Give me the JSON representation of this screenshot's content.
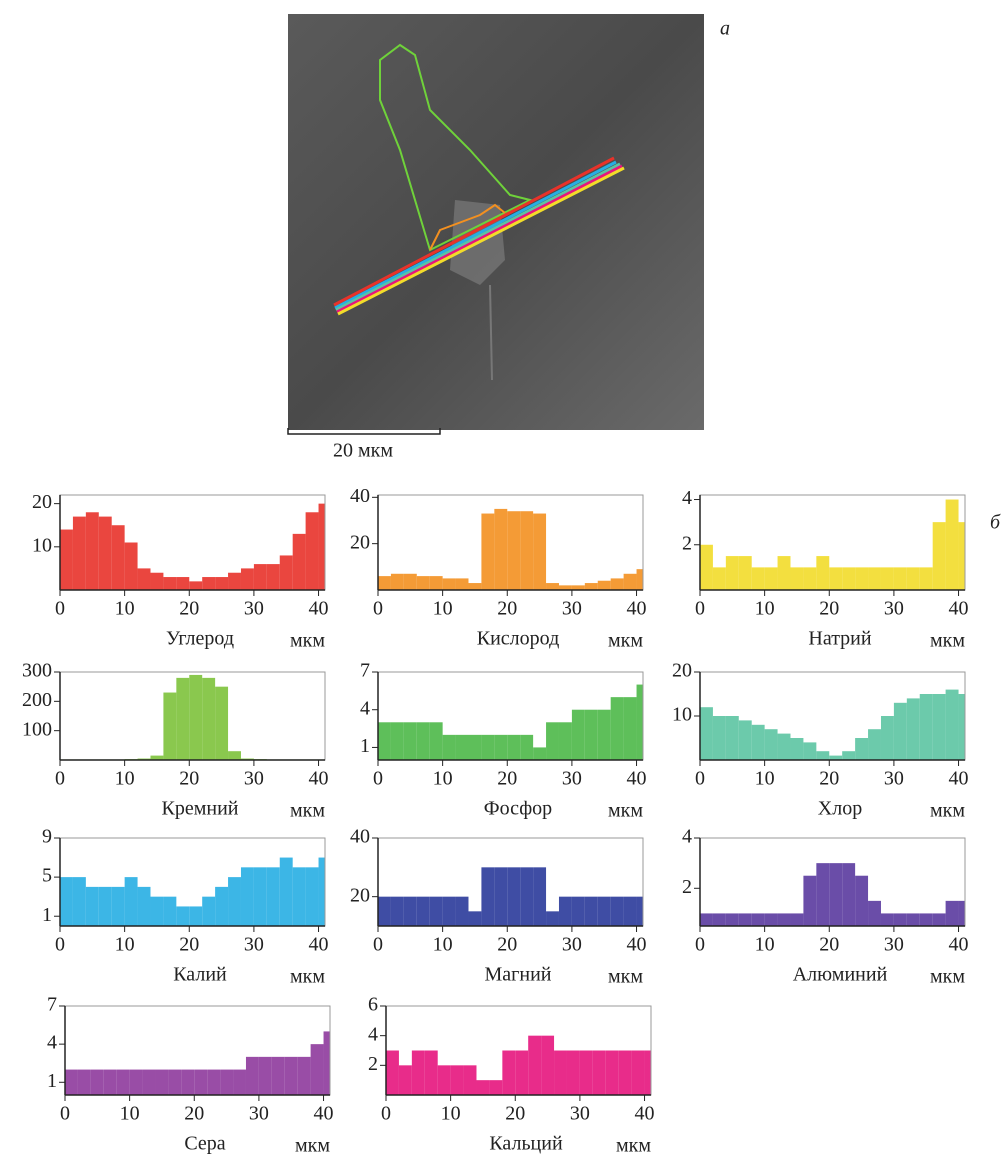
{
  "figure": {
    "panel_a": "а",
    "scale_bar": "20 мкм",
    "panel_b": "б"
  },
  "chart_data": [
    {
      "type": "bar",
      "title": "Углерод",
      "x_label": "мкм",
      "color": "#e8322a",
      "xlim": [
        0,
        41
      ],
      "xticks": [
        0,
        10,
        20,
        30,
        40
      ],
      "ylim": [
        0,
        22
      ],
      "yticks": [
        10,
        20
      ],
      "x": [
        0,
        2,
        4,
        6,
        8,
        10,
        12,
        14,
        16,
        18,
        20,
        22,
        24,
        26,
        28,
        30,
        32,
        34,
        36,
        38,
        40
      ],
      "values": [
        14,
        17,
        18,
        17,
        15,
        11,
        5,
        4,
        3,
        3,
        2,
        3,
        3,
        4,
        5,
        6,
        6,
        8,
        13,
        18,
        20
      ]
    },
    {
      "type": "bar",
      "title": "Кислород",
      "x_label": "мкм",
      "color": "#f39020",
      "xlim": [
        0,
        41
      ],
      "xticks": [
        0,
        10,
        20,
        30,
        40
      ],
      "ylim": [
        0,
        41
      ],
      "yticks": [
        20,
        40
      ],
      "x": [
        0,
        2,
        4,
        6,
        8,
        10,
        12,
        14,
        16,
        18,
        20,
        22,
        24,
        26,
        28,
        30,
        32,
        34,
        36,
        38,
        40
      ],
      "values": [
        6,
        7,
        7,
        6,
        6,
        5,
        5,
        3,
        33,
        35,
        34,
        34,
        33,
        3,
        2,
        2,
        3,
        4,
        5,
        7,
        9
      ]
    },
    {
      "type": "bar",
      "title": "Натрий",
      "x_label": "мкм",
      "color": "#f2dc2a",
      "xlim": [
        0,
        41
      ],
      "xticks": [
        0,
        10,
        20,
        30,
        40
      ],
      "ylim": [
        0,
        4.2
      ],
      "yticks": [
        2,
        4
      ],
      "x": [
        0,
        2,
        4,
        6,
        8,
        10,
        12,
        14,
        16,
        18,
        20,
        22,
        24,
        26,
        28,
        30,
        32,
        34,
        36,
        38,
        40
      ],
      "values": [
        2,
        1,
        1.5,
        1.5,
        1,
        1,
        1.5,
        1,
        1,
        1.5,
        1,
        1,
        1,
        1,
        1,
        1,
        1,
        1,
        3,
        4,
        3
      ]
    },
    {
      "type": "bar",
      "title": "Кремний",
      "x_label": "мкм",
      "color": "#7dc23b",
      "xlim": [
        0,
        41
      ],
      "xticks": [
        0,
        10,
        20,
        30,
        40
      ],
      "ylim": [
        0,
        300
      ],
      "yticks": [
        100,
        200,
        300
      ],
      "x": [
        0,
        2,
        4,
        6,
        8,
        10,
        12,
        14,
        16,
        18,
        20,
        22,
        24,
        26,
        28,
        30,
        32,
        34,
        36,
        38,
        40
      ],
      "values": [
        2,
        2,
        2,
        2,
        2,
        3,
        5,
        15,
        230,
        280,
        290,
        280,
        250,
        30,
        5,
        3,
        2,
        2,
        2,
        2,
        2
      ]
    },
    {
      "type": "bar",
      "title": "Фосфор",
      "x_label": "мкм",
      "color": "#4cb848",
      "xlim": [
        0,
        41
      ],
      "xticks": [
        0,
        10,
        20,
        30,
        40
      ],
      "ylim": [
        0,
        7
      ],
      "yticks": [
        1,
        4,
        7
      ],
      "x": [
        0,
        2,
        4,
        6,
        8,
        10,
        12,
        14,
        16,
        18,
        20,
        22,
        24,
        26,
        28,
        30,
        32,
        34,
        36,
        38,
        40
      ],
      "values": [
        3,
        3,
        3,
        3,
        3,
        2,
        2,
        2,
        2,
        2,
        2,
        2,
        1,
        3,
        3,
        4,
        4,
        4,
        5,
        5,
        6
      ]
    },
    {
      "type": "bar",
      "title": "Хлор",
      "x_label": "мкм",
      "color": "#5cc4a2",
      "xlim": [
        0,
        41
      ],
      "xticks": [
        0,
        10,
        20,
        30,
        40
      ],
      "ylim": [
        0,
        20
      ],
      "yticks": [
        10,
        20
      ],
      "x": [
        0,
        2,
        4,
        6,
        8,
        10,
        12,
        14,
        16,
        18,
        20,
        22,
        24,
        26,
        28,
        30,
        32,
        34,
        36,
        38,
        40
      ],
      "values": [
        12,
        10,
        10,
        9,
        8,
        7,
        6,
        5,
        4,
        2,
        1,
        2,
        5,
        7,
        10,
        13,
        14,
        15,
        15,
        16,
        15
      ]
    },
    {
      "type": "bar",
      "title": "Калий",
      "x_label": "мкм",
      "color": "#27aee3",
      "xlim": [
        0,
        41
      ],
      "xticks": [
        0,
        10,
        20,
        30,
        40
      ],
      "ylim": [
        0,
        9
      ],
      "yticks": [
        1,
        5,
        9
      ],
      "x": [
        0,
        2,
        4,
        6,
        8,
        10,
        12,
        14,
        16,
        18,
        20,
        22,
        24,
        26,
        28,
        30,
        32,
        34,
        36,
        38,
        40
      ],
      "values": [
        5,
        5,
        4,
        4,
        4,
        5,
        4,
        3,
        3,
        2,
        2,
        3,
        4,
        5,
        6,
        6,
        6,
        7,
        6,
        6,
        7
      ]
    },
    {
      "type": "bar",
      "title": "Магний",
      "x_label": "мкм",
      "color": "#2a3a9a",
      "xlim": [
        0,
        41
      ],
      "xticks": [
        0,
        10,
        20,
        30,
        40
      ],
      "ylim": [
        10,
        40
      ],
      "yticks": [
        20,
        40
      ],
      "x": [
        0,
        2,
        4,
        6,
        8,
        10,
        12,
        14,
        16,
        18,
        20,
        22,
        24,
        26,
        28,
        30,
        32,
        34,
        36,
        38,
        40
      ],
      "values": [
        20,
        20,
        20,
        20,
        20,
        20,
        20,
        15,
        30,
        30,
        30,
        30,
        30,
        15,
        20,
        20,
        20,
        20,
        20,
        20,
        20
      ]
    },
    {
      "type": "bar",
      "title": "Алюминий",
      "x_label": "мкм",
      "color": "#5a3a9e",
      "xlim": [
        0,
        41
      ],
      "xticks": [
        0,
        10,
        20,
        30,
        40
      ],
      "ylim": [
        0.5,
        4
      ],
      "yticks": [
        2,
        4
      ],
      "x": [
        0,
        2,
        4,
        6,
        8,
        10,
        12,
        14,
        16,
        18,
        20,
        22,
        24,
        26,
        28,
        30,
        32,
        34,
        36,
        38,
        40
      ],
      "values": [
        1,
        1,
        1,
        1,
        1,
        1,
        1,
        1,
        2.5,
        3,
        3,
        3,
        2.5,
        1.5,
        1,
        1,
        1,
        1,
        1,
        1.5,
        1.5
      ]
    },
    {
      "type": "bar",
      "title": "Сера",
      "x_label": "мкм",
      "color": "#8e3a9c",
      "xlim": [
        0,
        41
      ],
      "xticks": [
        0,
        10,
        20,
        30,
        40
      ],
      "ylim": [
        0,
        7
      ],
      "yticks": [
        1,
        4,
        7
      ],
      "x": [
        0,
        2,
        4,
        6,
        8,
        10,
        12,
        14,
        16,
        18,
        20,
        22,
        24,
        26,
        28,
        30,
        32,
        34,
        36,
        38,
        40
      ],
      "values": [
        2,
        2,
        2,
        2,
        2,
        2,
        2,
        2,
        2,
        2,
        2,
        2,
        2,
        2,
        3,
        3,
        3,
        3,
        3,
        4,
        5
      ]
    },
    {
      "type": "bar",
      "title": "Кальций",
      "x_label": "мкм",
      "color": "#e6157d",
      "xlim": [
        0,
        41
      ],
      "xticks": [
        0,
        10,
        20,
        30,
        40
      ],
      "ylim": [
        0,
        6
      ],
      "yticks": [
        2,
        4,
        6
      ],
      "x": [
        0,
        2,
        4,
        6,
        8,
        10,
        12,
        14,
        16,
        18,
        20,
        22,
        24,
        26,
        28,
        30,
        32,
        34,
        36,
        38,
        40
      ],
      "values": [
        3,
        2,
        3,
        3,
        2,
        2,
        2,
        1,
        1,
        3,
        3,
        4,
        4,
        3,
        3,
        3,
        3,
        3,
        3,
        3,
        3
      ]
    }
  ]
}
